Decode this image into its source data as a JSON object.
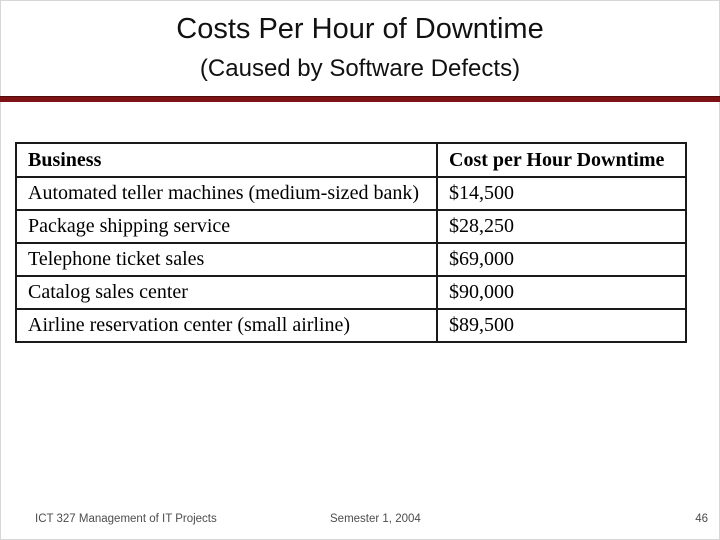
{
  "slide": {
    "title": "Costs Per Hour of Downtime",
    "subtitle": "(Caused by Software Defects)",
    "accent_color": "#7d1315",
    "background_color": "#ffffff"
  },
  "table": {
    "columns": [
      "Business",
      "Cost per Hour Downtime"
    ],
    "rows": [
      [
        "Automated teller machines (medium-sized bank)",
        "$14,500"
      ],
      [
        "Package shipping service",
        "$28,250"
      ],
      [
        "Telephone ticket sales",
        "$69,000"
      ],
      [
        "Catalog sales center",
        "$90,000"
      ],
      [
        "Airline reservation center (small airline)",
        "$89,500"
      ]
    ]
  },
  "footer": {
    "course": "ICT 327 Management of IT Projects",
    "semester": "Semester 1, 2004",
    "page_number": "46"
  }
}
